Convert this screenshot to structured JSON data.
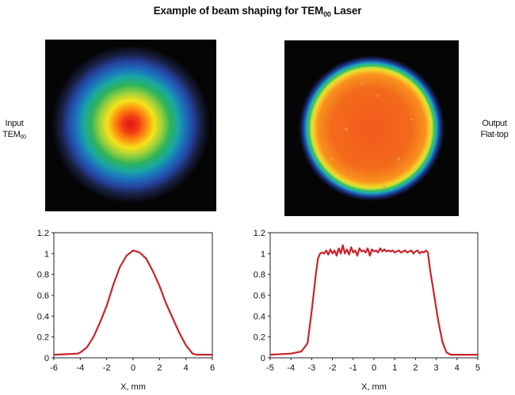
{
  "title": {
    "main": "Example of beam shaping for TEM",
    "sub": "00",
    "tail": " Laser"
  },
  "input_label": {
    "line1": "Input",
    "line2": "TEM",
    "sub": "00"
  },
  "output_label": {
    "line1": "Output",
    "line2": "Flat-top"
  },
  "beam_images": [
    {
      "name": "input-beam-image",
      "profile": "gaussian"
    },
    {
      "name": "output-beam-image",
      "profile": "flat-top"
    }
  ],
  "chart_data": [
    {
      "type": "line",
      "xlabel": "X, mm",
      "xlim": [
        -6,
        6
      ],
      "ylim": [
        0,
        1.2
      ],
      "xticks": [
        "-6",
        "-4",
        "-2",
        "0",
        "2",
        "4",
        "6"
      ],
      "yticks": [
        "0",
        "0.2",
        "0.4",
        "0.6",
        "0.8",
        "1",
        "1.2"
      ],
      "color": "#cc2229",
      "series": [
        {
          "x": [
            -6,
            -5,
            -4.2,
            -4,
            -3.5,
            -3,
            -2.5,
            -2,
            -1.5,
            -1,
            -0.5,
            0,
            0.5,
            1,
            1.5,
            2,
            2.5,
            3,
            3.5,
            4,
            4.5,
            4.8,
            5,
            6
          ],
          "y": [
            0.03,
            0.035,
            0.04,
            0.05,
            0.1,
            0.2,
            0.34,
            0.5,
            0.7,
            0.87,
            0.98,
            1.03,
            1.01,
            0.95,
            0.83,
            0.69,
            0.52,
            0.38,
            0.24,
            0.12,
            0.04,
            0.03,
            0.03,
            0.03
          ]
        }
      ]
    },
    {
      "type": "line",
      "xlabel": "X, mm",
      "xlim": [
        -5,
        5
      ],
      "ylim": [
        0,
        1.2
      ],
      "xticks": [
        "-5",
        "-4",
        "-3",
        "-2",
        "-1",
        "0",
        "1",
        "2",
        "3",
        "4",
        "5"
      ],
      "yticks": [
        "0",
        "0.2",
        "0.4",
        "0.6",
        "0.8",
        "1",
        "1.2"
      ],
      "color": "#cc2229",
      "series": [
        {
          "x": [
            -5,
            -4,
            -3.5,
            -3.2,
            -3.0,
            -2.9,
            -2.8,
            -2.7,
            -2.6,
            -2.5,
            -2.4,
            -2.3,
            -2.2,
            -2.1,
            -2.0,
            -1.9,
            -1.8,
            -1.7,
            -1.6,
            -1.5,
            -1.4,
            -1.3,
            -1.2,
            -1.1,
            -1.0,
            -0.9,
            -0.8,
            -0.7,
            -0.6,
            -0.5,
            -0.4,
            -0.3,
            -0.2,
            -0.1,
            0,
            0.1,
            0.2,
            0.3,
            0.4,
            0.5,
            0.6,
            0.7,
            0.8,
            0.9,
            1.0,
            1.1,
            1.2,
            1.3,
            1.4,
            1.5,
            1.6,
            1.7,
            1.8,
            1.9,
            2.0,
            2.1,
            2.2,
            2.3,
            2.4,
            2.5,
            2.6,
            2.7,
            2.9,
            3.1,
            3.3,
            3.5,
            3.7,
            4,
            5
          ],
          "y": [
            0.03,
            0.04,
            0.06,
            0.14,
            0.45,
            0.62,
            0.8,
            0.95,
            1.0,
            1.01,
            1.0,
            1.03,
            0.99,
            1.04,
            1.0,
            1.03,
            0.98,
            1.05,
            1.0,
            1.08,
            1.0,
            1.04,
            0.99,
            1.06,
            1.01,
            1.03,
            0.98,
            1.05,
            1.02,
            1.03,
            1.01,
            1.05,
            0.98,
            1.04,
            1.02,
            1.03,
            1.01,
            1.05,
            1.02,
            1.04,
            1.02,
            1.03,
            1.02,
            1.03,
            1.01,
            1.02,
            1.03,
            1.01,
            1.02,
            1.03,
            1.01,
            1.02,
            1.03,
            1.0,
            1.02,
            1.03,
            1.0,
            1.02,
            1.01,
            1.03,
            1.01,
            0.85,
            0.6,
            0.35,
            0.15,
            0.05,
            0.03,
            0.03,
            0.03
          ]
        }
      ]
    }
  ]
}
